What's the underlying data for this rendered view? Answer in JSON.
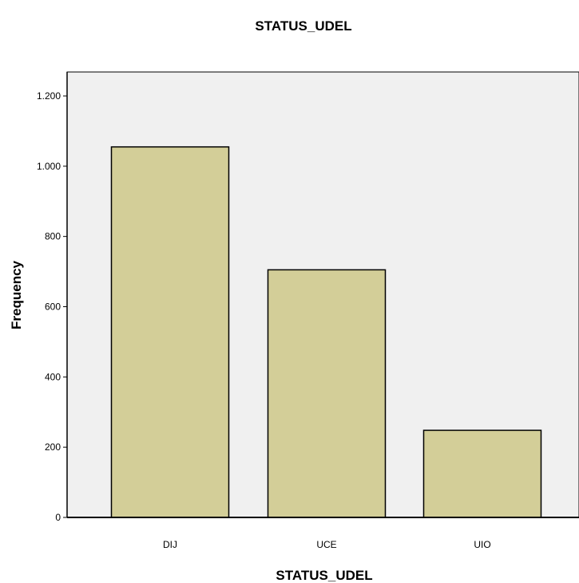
{
  "chart_data": {
    "type": "bar",
    "title": "STATUS_UDEL",
    "xlabel": "STATUS_UDEL",
    "ylabel": "Frequency",
    "categories": [
      "DIJ",
      "UCE",
      "UIO"
    ],
    "values": [
      1055,
      705,
      248
    ],
    "ylim": [
      0,
      1200
    ],
    "yticks": [
      0,
      200,
      400,
      600,
      800,
      1000,
      1200
    ],
    "ytick_labels": [
      "0",
      "200",
      "400",
      "600",
      "800",
      "1.000",
      "1.200"
    ],
    "grid": false,
    "colors": {
      "plot_background": "#f0f0f0",
      "bar_fill": "#d3ce98",
      "bar_stroke": "#000000",
      "page_background": "#ffffff"
    }
  }
}
